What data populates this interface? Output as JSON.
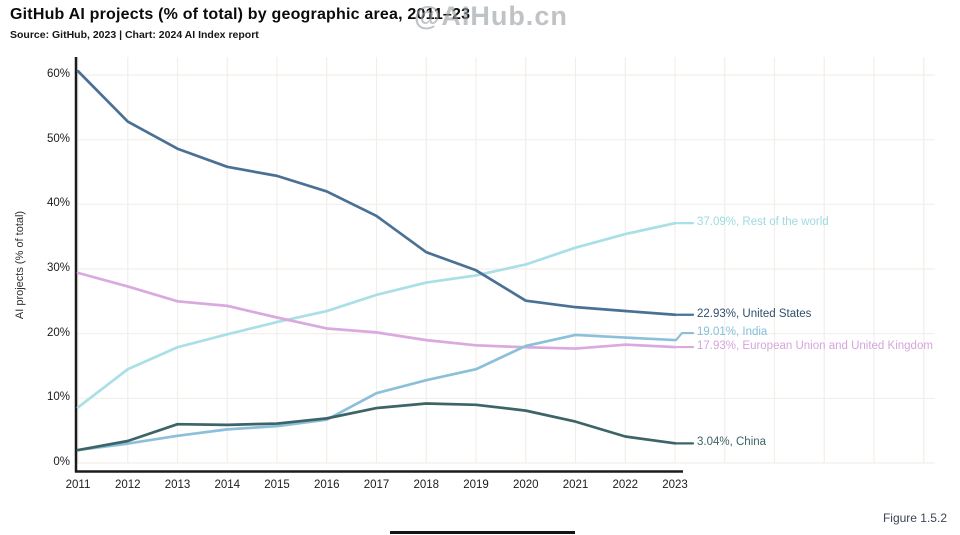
{
  "title": "GitHub AI projects (% of total) by geographic area, 2011–23",
  "subtitle": "Source: GitHub, 2023 | Chart: 2024 AI Index report",
  "watermark": "@AIHub.cn",
  "figure_caption": "Figure 1.5.2",
  "colors": {
    "background": "#ffffff",
    "grid": "#f2eee9",
    "axis": "#1b1b1b",
    "tick_text": "#1c1c1c"
  },
  "chart_data": {
    "type": "line",
    "title": "GitHub AI projects (% of total) by geographic area, 2011–23",
    "xlabel": "",
    "ylabel": "AI projects (% of total)",
    "x": [
      2011,
      2012,
      2013,
      2014,
      2015,
      2016,
      2017,
      2018,
      2019,
      2020,
      2021,
      2022,
      2023
    ],
    "y_ticks": [
      "0%",
      "10%",
      "20%",
      "30%",
      "40%",
      "50%",
      "60%"
    ],
    "ylim": [
      0,
      60
    ],
    "grid": true,
    "legend_position": "end-of-line-labels",
    "series": [
      {
        "name": "Rest of the world",
        "end_label": "37.09%, Rest of the world",
        "final_value": 37.09,
        "color": "#a9dfe6",
        "label_color": "#9edae2",
        "values": [
          8.6,
          14.5,
          17.9,
          19.9,
          21.8,
          23.5,
          26.0,
          27.9,
          29.0,
          30.7,
          33.3,
          35.4,
          37.09
        ]
      },
      {
        "name": "European Union and United Kingdom",
        "end_label": "17.93%, European Union and United Kingdom",
        "final_value": 17.93,
        "color": "#d9a9e0",
        "label_color": "#d5a5dd",
        "values": [
          29.4,
          27.3,
          25.0,
          24.3,
          22.5,
          20.8,
          20.2,
          19.0,
          18.2,
          17.9,
          17.7,
          18.3,
          17.93
        ]
      },
      {
        "name": "India",
        "end_label": "19.01%, India",
        "final_value": 19.01,
        "color": "#8cc0da",
        "label_color": "#85c0da",
        "values": [
          2.0,
          3.0,
          4.2,
          5.2,
          5.7,
          6.7,
          10.8,
          12.8,
          14.5,
          18.1,
          19.8,
          19.4,
          19.01
        ]
      },
      {
        "name": "United States",
        "end_label": "22.93%, United States",
        "final_value": 22.93,
        "color": "#4a7195",
        "label_color": "#2f4e6d",
        "values": [
          60.6,
          52.8,
          48.6,
          45.8,
          44.4,
          42.0,
          38.2,
          32.6,
          29.8,
          25.1,
          24.1,
          23.5,
          22.93
        ]
      },
      {
        "name": "China",
        "end_label": "3.04%, China",
        "final_value": 3.04,
        "color": "#3d6467",
        "label_color": "#3c6366",
        "values": [
          2.0,
          3.4,
          6.0,
          5.9,
          6.1,
          6.9,
          8.5,
          9.2,
          9.0,
          8.1,
          6.4,
          4.1,
          3.04
        ]
      }
    ]
  }
}
